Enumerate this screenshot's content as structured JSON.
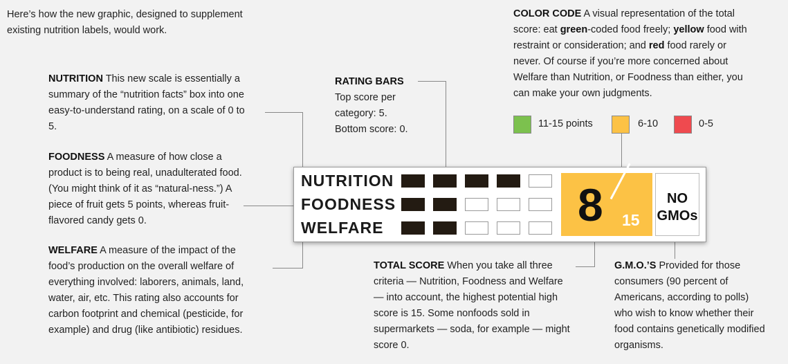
{
  "intro": {
    "line1": "Here’s how the new graphic, designed to supplement",
    "line2": "existing nutrition labels, would work."
  },
  "nutrition_note": {
    "heading": "NUTRITION",
    "l1": " This new scale is essentially a",
    "l2": "summary of the “nutrition facts” box into one",
    "l3": "easy-to-understand rating, on a scale of 0 to",
    "l4": "5."
  },
  "foodness_note": {
    "heading": "FOODNESS",
    "l1": " A measure of how close a",
    "l2": "product is to being real, unadulterated food.",
    "l3": "(You might think of it as “natural-ness.”) A",
    "l4": "piece of fruit gets 5 points, whereas fruit-",
    "l5": "flavored candy gets 0."
  },
  "welfare_note": {
    "heading": "WELFARE",
    "l1": " A measure of the impact of the",
    "l2": "food’s production on the overall welfare of",
    "l3": "everything involved: laborers, animals, land,",
    "l4": "water, air, etc. This rating also accounts for",
    "l5": "carbon footprint and chemical (pesticide, for",
    "l6": "example) and drug (like antibiotic) residues."
  },
  "rating_bars_note": {
    "heading": "RATING BARS",
    "l1": "Top score per",
    "l2": "category: 5.",
    "l3": "Bottom score: 0."
  },
  "color_code_note": {
    "heading": "COLOR CODE",
    "l1a": " A visual representation of the total",
    "l2a": "score: eat ",
    "l2b": "green",
    "l2c": "-coded food freely; ",
    "l2d": "yellow",
    "l2e": " food with",
    "l3a": "restraint or consideration; and ",
    "l3b": "red",
    "l3c": " food rarely or",
    "l4": "never. Of course if you’re more concerned about",
    "l5": "Welfare than Nutrition, or Foodness than either, you",
    "l6": "can make your own judgments."
  },
  "legend": [
    {
      "label": "11-15 points",
      "color": "#7cc14e"
    },
    {
      "label": "6-10",
      "color": "#fcc245"
    },
    {
      "label": "0-5",
      "color": "#ef4a4f"
    }
  ],
  "label": {
    "categories": [
      {
        "name": "NUTRITION",
        "score": 4,
        "max": 5
      },
      {
        "name": "FOODNESS",
        "score": 2,
        "max": 5
      },
      {
        "name": "WELFARE",
        "score": 2,
        "max": 5
      }
    ],
    "total": "8",
    "total_max": "15",
    "gmo_line1": "NO",
    "gmo_line2": "GMOs"
  },
  "total_score_note": {
    "heading": "TOTAL SCORE",
    "l1": " When you take all three",
    "l2": "criteria — Nutrition, Foodness and Welfare",
    "l3": "— into account, the highest potential high",
    "l4": "score is 15. Some nonfoods sold in",
    "l5": "supermarkets — soda, for example — might",
    "l6": "score 0."
  },
  "gmo_note": {
    "heading": "G.M.O.’S",
    "l1": " Provided for those",
    "l2": "consumers (90 percent of",
    "l3": "Americans, according to polls)",
    "l4": "who wish to know whether their",
    "l5": "food contains genetically modified",
    "l6": "organisms."
  }
}
